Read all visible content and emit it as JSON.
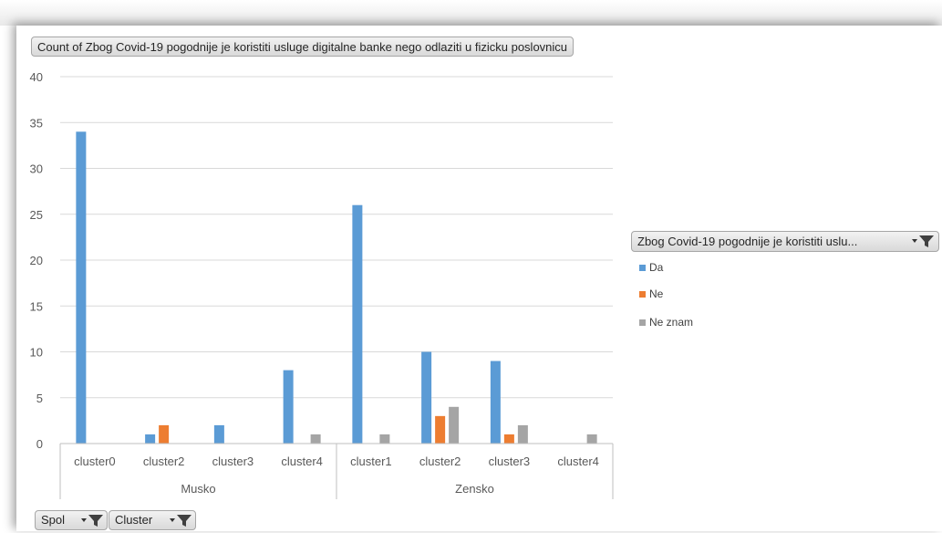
{
  "chart_data": {
    "type": "bar",
    "title": "Count of Zbog Covid-19 pogodnije je koristiti usluge digitalne banke nego odlaziti u fizicku poslovnicu",
    "xlabel": "",
    "ylabel": "",
    "ylim": [
      0,
      40
    ],
    "yticks": [
      "0",
      "5",
      "10",
      "15",
      "20",
      "25",
      "30",
      "35",
      "40"
    ],
    "grid": true,
    "legend_position": "right",
    "legend_title": "Zbog Covid-19 pogodnije je koristiti uslu...",
    "groups": [
      {
        "label": "Musko",
        "categories": [
          "cluster0",
          "cluster2",
          "cluster3",
          "cluster4"
        ]
      },
      {
        "label": "Zensko",
        "categories": [
          "cluster1",
          "cluster2",
          "cluster3",
          "cluster4"
        ]
      }
    ],
    "series": [
      {
        "name": "Da",
        "color": "#5b9bd5",
        "values": [
          34,
          1,
          2,
          8,
          26,
          10,
          9,
          0
        ]
      },
      {
        "name": "Ne",
        "color": "#ed7d31",
        "values": [
          0,
          2,
          0,
          0,
          0,
          3,
          1,
          0
        ]
      },
      {
        "name": "Ne znam",
        "color": "#a5a5a5",
        "values": [
          0,
          0,
          0,
          1,
          1,
          4,
          2,
          1
        ]
      }
    ]
  },
  "filters": [
    {
      "label": "Spol",
      "icon": "filter-dropdown-icon"
    },
    {
      "label": "Cluster",
      "icon": "filter-dropdown-icon"
    }
  ]
}
